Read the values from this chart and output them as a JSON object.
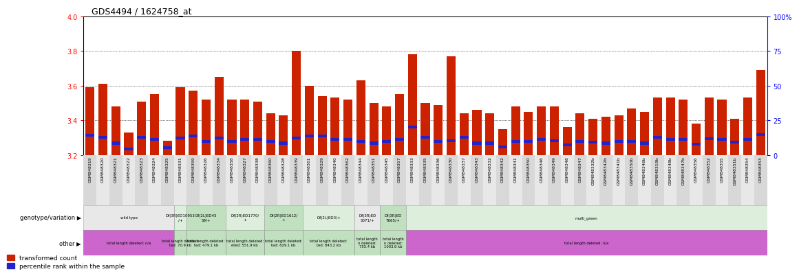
{
  "title": "GDS4494 / 1624758_at",
  "samples": [
    "GSM848319",
    "GSM848320",
    "GSM848321",
    "GSM848322",
    "GSM848323",
    "GSM848324",
    "GSM848325",
    "GSM848331",
    "GSM848359",
    "GSM848326",
    "GSM848334",
    "GSM848358",
    "GSM848327",
    "GSM848338",
    "GSM848360",
    "GSM848328",
    "GSM848339",
    "GSM848361",
    "GSM848329",
    "GSM848340",
    "GSM848362",
    "GSM848344",
    "GSM848351",
    "GSM848345",
    "GSM848357",
    "GSM848333",
    "GSM848335",
    "GSM848336",
    "GSM848330",
    "GSM848337",
    "GSM848343",
    "GSM848332",
    "GSM848342",
    "GSM848341",
    "GSM848350",
    "GSM848346",
    "GSM848349",
    "GSM848348",
    "GSM848347",
    "GSM848332b",
    "GSM848342b",
    "GSM848341b",
    "GSM848350b",
    "GSM848346b",
    "GSM848319b",
    "GSM848348b",
    "GSM848347b",
    "GSM848356",
    "GSM848352",
    "GSM848355",
    "GSM848351b",
    "GSM848354",
    "GSM848353"
  ],
  "red_values": [
    3.59,
    3.61,
    3.48,
    3.33,
    3.51,
    3.55,
    3.28,
    3.59,
    3.57,
    3.52,
    3.65,
    3.52,
    3.52,
    3.51,
    3.44,
    3.43,
    3.8,
    3.6,
    3.54,
    3.53,
    3.52,
    3.63,
    3.5,
    3.48,
    3.55,
    3.78,
    3.5,
    3.49,
    3.77,
    3.44,
    3.46,
    3.44,
    3.35,
    3.48,
    3.45,
    3.48,
    3.48,
    3.36,
    3.44,
    3.41,
    3.42,
    3.43,
    3.47,
    3.45,
    3.53,
    3.53,
    3.52,
    3.38,
    3.53,
    3.52,
    3.41,
    3.53,
    3.69
  ],
  "blue_values": [
    3.305,
    3.295,
    3.26,
    3.225,
    3.295,
    3.28,
    3.235,
    3.29,
    3.3,
    3.27,
    3.29,
    3.27,
    3.28,
    3.28,
    3.27,
    3.26,
    3.29,
    3.3,
    3.3,
    3.28,
    3.28,
    3.27,
    3.26,
    3.27,
    3.28,
    3.355,
    3.295,
    3.27,
    3.275,
    3.295,
    3.26,
    3.26,
    3.24,
    3.27,
    3.27,
    3.28,
    3.275,
    3.25,
    3.27,
    3.265,
    3.26,
    3.27,
    3.27,
    3.26,
    3.295,
    3.28,
    3.28,
    3.255,
    3.285,
    3.28,
    3.265,
    3.28,
    3.31
  ],
  "ymin": 3.2,
  "ymax": 4.0,
  "yticks_left": [
    3.2,
    3.4,
    3.6,
    3.8,
    4.0
  ],
  "yticks_right_vals": [
    0,
    25,
    50,
    75,
    100
  ],
  "bar_color": "#cc2200",
  "blue_color": "#2222cc",
  "grid_lines": [
    3.4,
    3.6,
    3.8
  ],
  "genotype_groups": [
    {
      "label": "wild type",
      "start": 0,
      "end": 7,
      "color": "#e8e8e8"
    },
    {
      "label": "Df(3R)ED10953\n/+",
      "start": 7,
      "end": 8,
      "color": "#ddeedd"
    },
    {
      "label": "Df(2L)ED45\n59/+",
      "start": 8,
      "end": 11,
      "color": "#c0e0c0"
    },
    {
      "label": "Df(2R)ED1770/\n+",
      "start": 11,
      "end": 14,
      "color": "#ddeedd"
    },
    {
      "label": "Df(2R)ED1612/\n+",
      "start": 14,
      "end": 17,
      "color": "#c0e0c0"
    },
    {
      "label": "Df(2L)ED3/+",
      "start": 17,
      "end": 21,
      "color": "#ddeedd"
    },
    {
      "label": "Df(3R)ED\n5071/+",
      "start": 21,
      "end": 23,
      "color": "#e8e8e8"
    },
    {
      "label": "Df(3R)ED\n7665/+",
      "start": 23,
      "end": 25,
      "color": "#c0e0c0"
    },
    {
      "label": "multi_green",
      "start": 25,
      "end": 53,
      "color": "#ddeedd"
    }
  ],
  "other_groups": [
    {
      "label": "total length deleted: n/a",
      "start": 0,
      "end": 7,
      "color": "#cc66cc"
    },
    {
      "label": "total length deleted:\nted: 70.9 kb",
      "start": 7,
      "end": 8,
      "color": "#c0e0c0"
    },
    {
      "label": "total length deleted:\nted: 479.1 kb",
      "start": 8,
      "end": 11,
      "color": "#c0e0c0"
    },
    {
      "label": "total length deleted:\neted: 551.9 kb",
      "start": 11,
      "end": 14,
      "color": "#c0e0c0"
    },
    {
      "label": "total length deleted:\nted: 829.1 kb",
      "start": 14,
      "end": 17,
      "color": "#c0e0c0"
    },
    {
      "label": "total length deleted:\nted: 843.2 kb",
      "start": 17,
      "end": 21,
      "color": "#c0e0c0"
    },
    {
      "label": "total length\nn deleted:\n755.4 kb",
      "start": 21,
      "end": 23,
      "color": "#c0e0c0"
    },
    {
      "label": "total length\nn deleted:\n1003.6 kb",
      "start": 23,
      "end": 25,
      "color": "#c0e0c0"
    },
    {
      "label": "total length deleted: n/a",
      "start": 25,
      "end": 53,
      "color": "#cc66cc"
    }
  ],
  "xlabels_alt_colors": [
    "#d8d8d8",
    "#e8e8e8"
  ]
}
